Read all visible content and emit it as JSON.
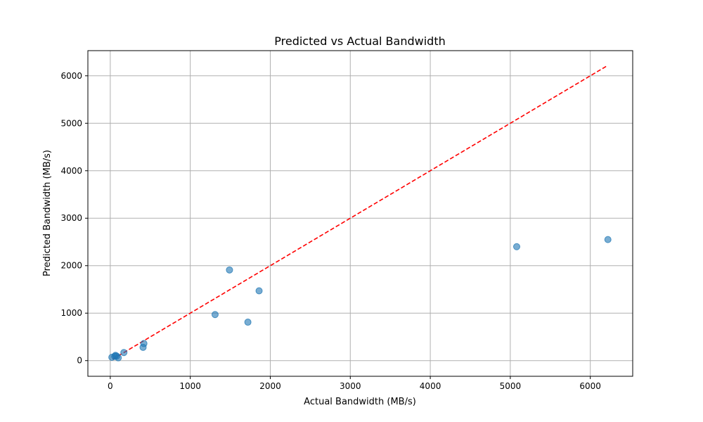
{
  "chart_data": {
    "type": "scatter",
    "title": "Predicted vs Actual Bandwidth",
    "xlabel": "Actual Bandwidth (MB/s)",
    "ylabel": "Predicted Bandwidth (MB/s)",
    "xlim": [
      -280,
      6530
    ],
    "ylim": [
      -330,
      6530
    ],
    "xticks": [
      0,
      1000,
      2000,
      3000,
      4000,
      5000,
      6000
    ],
    "yticks": [
      0,
      1000,
      2000,
      3000,
      4000,
      5000,
      6000
    ],
    "grid": true,
    "colors": {
      "points": "#1f77b4",
      "reference_line": "#ff0000",
      "grid": "#b0b0b0"
    },
    "reference_line": {
      "style": "dashed",
      "from": [
        30,
        30
      ],
      "to": [
        6220,
        6220
      ]
    },
    "points": [
      {
        "x": 20,
        "y": 70
      },
      {
        "x": 55,
        "y": 90
      },
      {
        "x": 65,
        "y": 110
      },
      {
        "x": 80,
        "y": 95
      },
      {
        "x": 100,
        "y": 60
      },
      {
        "x": 170,
        "y": 170
      },
      {
        "x": 410,
        "y": 280
      },
      {
        "x": 420,
        "y": 360
      },
      {
        "x": 1310,
        "y": 970
      },
      {
        "x": 1490,
        "y": 1910
      },
      {
        "x": 1720,
        "y": 810
      },
      {
        "x": 1860,
        "y": 1470
      },
      {
        "x": 5080,
        "y": 2400
      },
      {
        "x": 6220,
        "y": 2550
      }
    ]
  }
}
